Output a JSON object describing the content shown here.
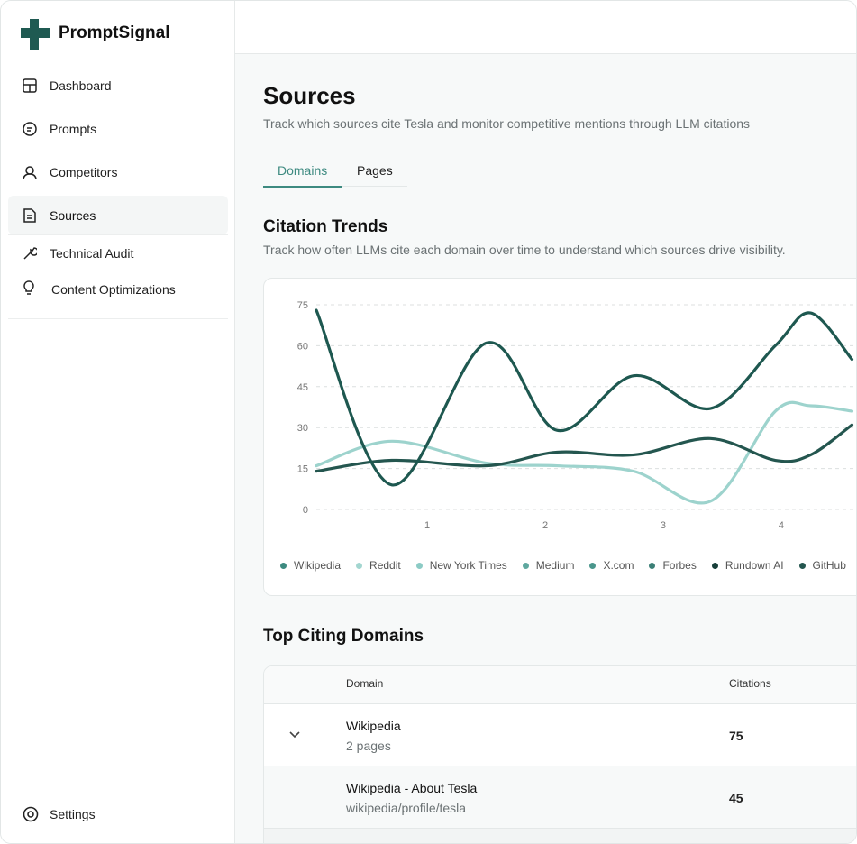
{
  "sidebar": {
    "brand": "PromptSignal",
    "nav": [
      "Dashboard",
      "Prompts",
      "Competitors",
      "Sources",
      "Technical Audit",
      "Content Optimizations"
    ],
    "active": "Sources",
    "settings": "Settings"
  },
  "header": {
    "title": "Sources",
    "subtitle": "Track which sources cite Tesla and monitor competitive mentions through LLM citations"
  },
  "tabs": [
    "Domains",
    "Pages"
  ],
  "trends": {
    "title": "Citation Trends",
    "subtitle": "Track how often LLMs cite each domain over time to understand which sources drive visibility."
  },
  "chart_data": {
    "type": "line",
    "x": [
      0.06,
      0.7,
      1.5,
      2.1,
      2.75,
      3.4,
      3.95,
      4.25,
      4.6
    ],
    "series": [
      {
        "color": "#9dd3cd",
        "values": [
          16,
          25,
          17,
          16,
          14,
          3,
          36,
          38,
          36
        ]
      },
      {
        "color": "#24564f",
        "values": [
          14,
          18,
          16,
          21,
          20,
          26,
          18,
          20,
          31
        ]
      },
      {
        "color": "#1e5850",
        "values": [
          73,
          9,
          61,
          29,
          49,
          37,
          60,
          72,
          55
        ]
      }
    ],
    "legend": [
      {
        "name": "Wikipedia",
        "color": "#3d8a80"
      },
      {
        "name": "Reddit",
        "color": "#a3d6d0"
      },
      {
        "name": "New York Times",
        "color": "#8ccbc5"
      },
      {
        "name": "Medium",
        "color": "#5fa89f"
      },
      {
        "name": "X.com",
        "color": "#4a968c"
      },
      {
        "name": "Forbes",
        "color": "#3b7f76"
      },
      {
        "name": "Rundown AI",
        "color": "#173f3a"
      },
      {
        "name": "GitHub",
        "color": "#24564f"
      }
    ],
    "xlim": [
      0.06,
      4.65
    ],
    "xticks": [
      1,
      2,
      3,
      4
    ],
    "ylim": [
      0,
      75
    ],
    "yticks": [
      0,
      15,
      30,
      45,
      60,
      75
    ],
    "grid": true
  },
  "domains": {
    "title": "Top Citing Domains",
    "columns": [
      "Domain",
      "Citations"
    ],
    "rows": [
      {
        "name": "Wikipedia",
        "detail": "2 pages",
        "citations": 75
      },
      {
        "name": "Wikipedia - About Tesla",
        "detail": "wikipedia/profile/tesla",
        "citations": 45
      }
    ]
  }
}
